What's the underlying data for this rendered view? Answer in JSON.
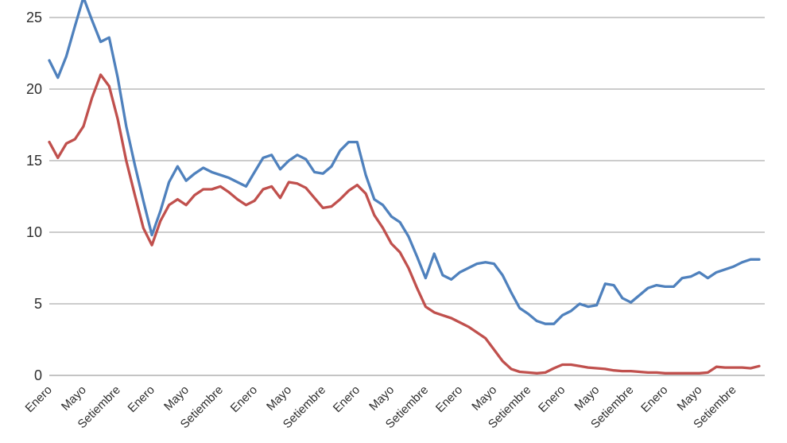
{
  "chart_data": {
    "type": "line",
    "title": "",
    "legend": "none",
    "grid": true,
    "background": "#ffffff",
    "grid_color": "#989898",
    "axis_line_color": "#8a8a8a",
    "label_color": "#2e2e2e",
    "y_ticks": [
      0,
      5,
      10,
      15,
      20,
      25
    ],
    "ylim": [
      0,
      26.2
    ],
    "x_tick_point_interval": 4,
    "points_count": 84,
    "x_tick_labels": [
      "Enero",
      "Mayo",
      "Setiembre",
      "Enero",
      "Mayo",
      "Setiembre",
      "Enero",
      "Mayo",
      "Setiembre",
      "Enero",
      "Mayo",
      "Setiembre",
      "Enero",
      "Mayo",
      "Setiembre",
      "Enero",
      "Mayo",
      "Setiembre",
      "Enero",
      "Mayo",
      "Setiembre"
    ],
    "series": [
      {
        "name": "series-blue",
        "color": "#4F81BD",
        "values": [
          22.0,
          20.8,
          22.3,
          24.4,
          26.4,
          24.8,
          23.3,
          23.6,
          20.8,
          17.4,
          14.7,
          12.2,
          9.8,
          11.5,
          13.5,
          14.6,
          13.6,
          14.1,
          14.5,
          14.2,
          14.0,
          13.8,
          13.5,
          13.2,
          14.2,
          15.2,
          15.4,
          14.4,
          15.0,
          15.4,
          15.1,
          14.2,
          14.1,
          14.6,
          15.7,
          16.3,
          16.3,
          14.0,
          12.3,
          11.9,
          11.1,
          10.7,
          9.7,
          8.3,
          6.8,
          8.5,
          7.0,
          6.7,
          7.2,
          7.5,
          7.8,
          7.9,
          7.8,
          7.0,
          5.8,
          4.7,
          4.3,
          3.8,
          3.6,
          3.6,
          4.2,
          4.5,
          5.0,
          4.8,
          4.9,
          6.4,
          6.3,
          5.4,
          5.1,
          5.6,
          6.1,
          6.3,
          6.2,
          6.2,
          6.8,
          6.9,
          7.2,
          6.8,
          7.2,
          7.4,
          7.6,
          7.9,
          8.1,
          8.1
        ]
      },
      {
        "name": "series-red",
        "color": "#C0504D",
        "values": [
          16.3,
          15.2,
          16.2,
          16.5,
          17.4,
          19.4,
          21.0,
          20.2,
          17.9,
          15.0,
          12.6,
          10.3,
          9.1,
          10.8,
          11.9,
          12.3,
          11.9,
          12.6,
          13.0,
          13.0,
          13.2,
          12.8,
          12.3,
          11.9,
          12.2,
          13.0,
          13.2,
          12.4,
          13.5,
          13.4,
          13.1,
          12.4,
          11.7,
          11.8,
          12.3,
          12.9,
          13.3,
          12.7,
          11.2,
          10.3,
          9.2,
          8.6,
          7.5,
          6.1,
          4.8,
          4.4,
          4.2,
          4.0,
          3.7,
          3.4,
          3.0,
          2.6,
          1.8,
          1.0,
          0.45,
          0.25,
          0.2,
          0.15,
          0.2,
          0.5,
          0.75,
          0.75,
          0.65,
          0.55,
          0.5,
          0.45,
          0.35,
          0.3,
          0.3,
          0.25,
          0.2,
          0.2,
          0.15,
          0.15,
          0.15,
          0.15,
          0.15,
          0.2,
          0.6,
          0.55,
          0.55,
          0.55,
          0.5,
          0.65
        ]
      }
    ]
  }
}
